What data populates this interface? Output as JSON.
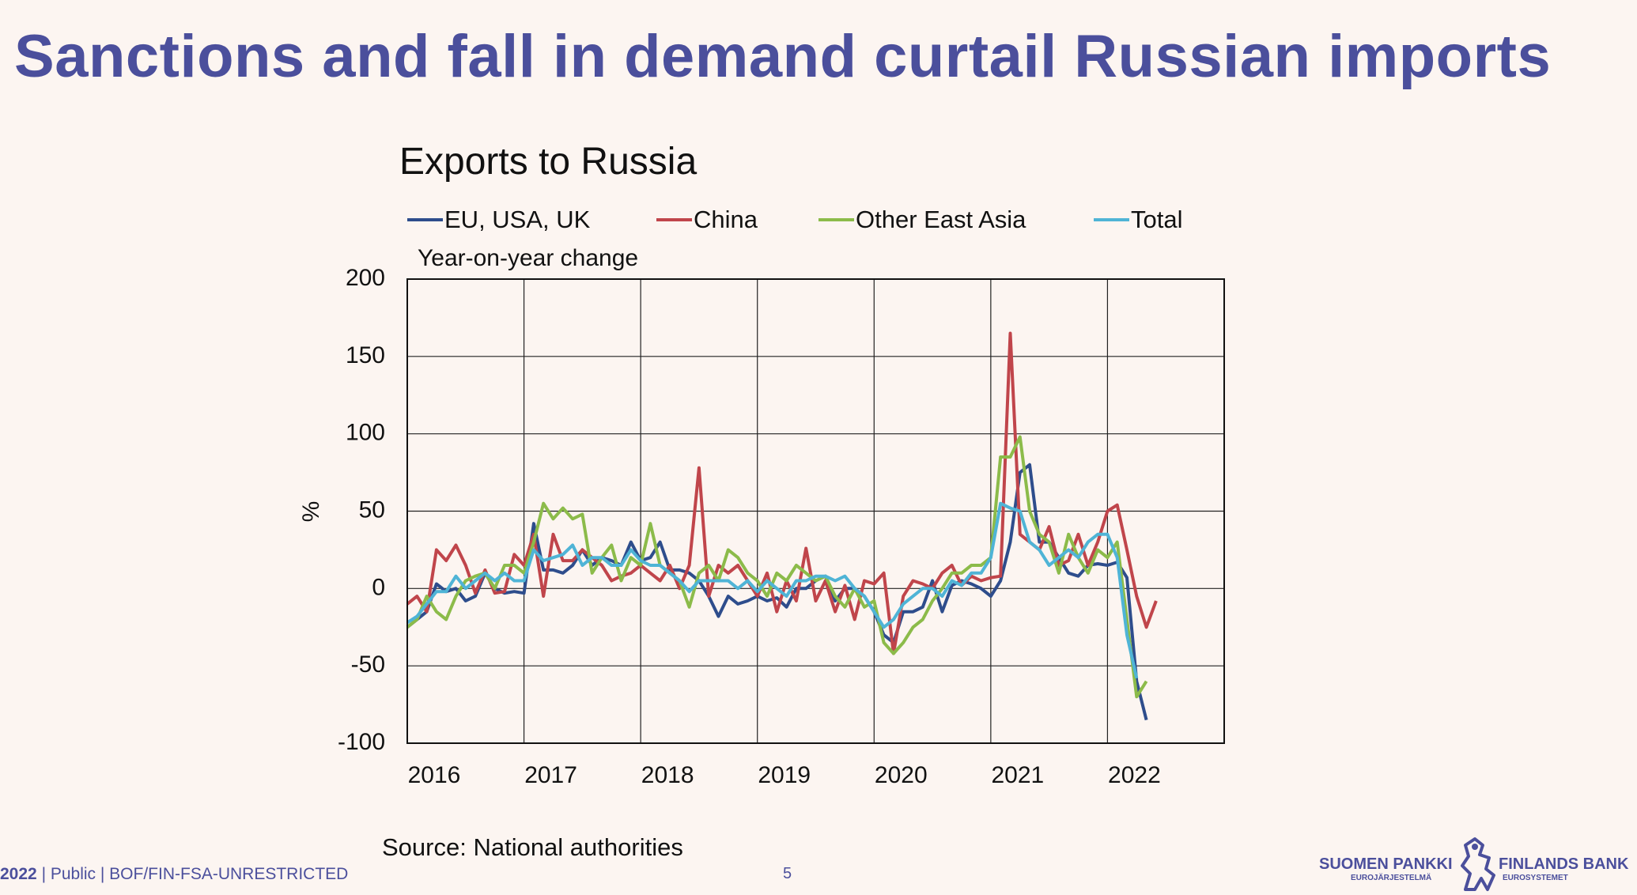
{
  "slide": {
    "title": "Sanctions and fall in demand curtail Russian imports",
    "footer_year": "2022",
    "footer_text": "| Public | BOF/FIN-FSA-UNRESTRICTED",
    "page_number": "5",
    "logo_left_name": "SUOMEN PANKKI",
    "logo_left_sub": "EUROJÄRJESTELMÄ",
    "logo_right_name": "FINLANDS BANK",
    "logo_right_sub": "EUROSYSTEMET",
    "brand_color": "#4b4f9c"
  },
  "chart_data": {
    "type": "line",
    "title": "Exports to Russia",
    "subtitle": "Year-on-year change",
    "ylabel": "%",
    "ylim": [
      -100,
      200
    ],
    "yticks": [
      -100,
      -50,
      0,
      50,
      100,
      150,
      200
    ],
    "xlim": [
      0,
      84
    ],
    "x_tick_labels": [
      "2016",
      "2017",
      "2018",
      "2019",
      "2020",
      "2021",
      "2022"
    ],
    "x_tick_positions": [
      0,
      12,
      24,
      36,
      48,
      60,
      72
    ],
    "grid": true,
    "legend_position": "top",
    "source": "Source: National authorities",
    "series": [
      {
        "name": "EU, USA, UK",
        "color": "#2e4d8c",
        "values": [
          -25,
          -20,
          -15,
          3,
          -2,
          0,
          -8,
          -5,
          10,
          0,
          -3,
          -2,
          -3,
          42,
          12,
          12,
          10,
          15,
          25,
          15,
          20,
          18,
          15,
          30,
          18,
          20,
          30,
          12,
          12,
          10,
          5,
          -5,
          -18,
          -5,
          -10,
          -8,
          -5,
          -8,
          -6,
          -12,
          0,
          0,
          5,
          8,
          -8,
          0,
          0,
          -5,
          -15,
          -30,
          -35,
          -15,
          -15,
          -12,
          5,
          -15,
          2,
          5,
          3,
          0,
          -5,
          5,
          30,
          75,
          80,
          30,
          30,
          20,
          10,
          8,
          15,
          16,
          15,
          17,
          7,
          -60,
          -85
        ]
      },
      {
        "name": "China",
        "color": "#c0454b",
        "values": [
          -10,
          -5,
          -15,
          25,
          18,
          28,
          15,
          -3,
          12,
          -3,
          -2,
          22,
          15,
          35,
          -5,
          35,
          18,
          18,
          25,
          20,
          15,
          5,
          8,
          10,
          15,
          10,
          5,
          15,
          0,
          15,
          78,
          -5,
          15,
          10,
          15,
          5,
          -5,
          10,
          -15,
          5,
          -8,
          26,
          -8,
          5,
          -15,
          2,
          -20,
          5,
          3,
          10,
          -42,
          -5,
          5,
          3,
          0,
          10,
          15,
          2,
          8,
          5,
          7,
          8,
          165,
          35,
          30,
          25,
          40,
          15,
          18,
          35,
          15,
          30,
          50,
          54,
          25,
          -5,
          -25,
          -8
        ]
      },
      {
        "name": "Other East Asia",
        "color": "#8cbb4a",
        "values": [
          -25,
          -20,
          -5,
          -15,
          -20,
          -5,
          5,
          8,
          10,
          0,
          15,
          15,
          10,
          30,
          55,
          45,
          52,
          45,
          48,
          10,
          20,
          28,
          5,
          20,
          15,
          42,
          15,
          10,
          5,
          -12,
          10,
          15,
          5,
          25,
          20,
          10,
          5,
          -5,
          10,
          5,
          15,
          10,
          5,
          8,
          -5,
          -12,
          0,
          -12,
          -8,
          -35,
          -42,
          -35,
          -25,
          -20,
          -8,
          0,
          10,
          10,
          15,
          15,
          20,
          85,
          85,
          98,
          50,
          35,
          30,
          10,
          35,
          20,
          10,
          25,
          20,
          30,
          -20,
          -70,
          -60
        ]
      },
      {
        "name": "Total",
        "color": "#4fb4d6",
        "values": [
          -22,
          -18,
          -10,
          -2,
          -2,
          8,
          0,
          5,
          10,
          5,
          10,
          5,
          5,
          25,
          18,
          20,
          22,
          28,
          15,
          20,
          20,
          15,
          15,
          25,
          18,
          15,
          15,
          10,
          5,
          -2,
          5,
          5,
          5,
          5,
          0,
          5,
          -2,
          5,
          0,
          -5,
          5,
          5,
          8,
          8,
          5,
          8,
          0,
          -5,
          -15,
          -25,
          -20,
          -10,
          -5,
          0,
          0,
          -5,
          5,
          2,
          10,
          10,
          20,
          55,
          52,
          50,
          30,
          25,
          15,
          20,
          25,
          20,
          30,
          35,
          35,
          20,
          -30,
          -58
        ]
      }
    ]
  }
}
